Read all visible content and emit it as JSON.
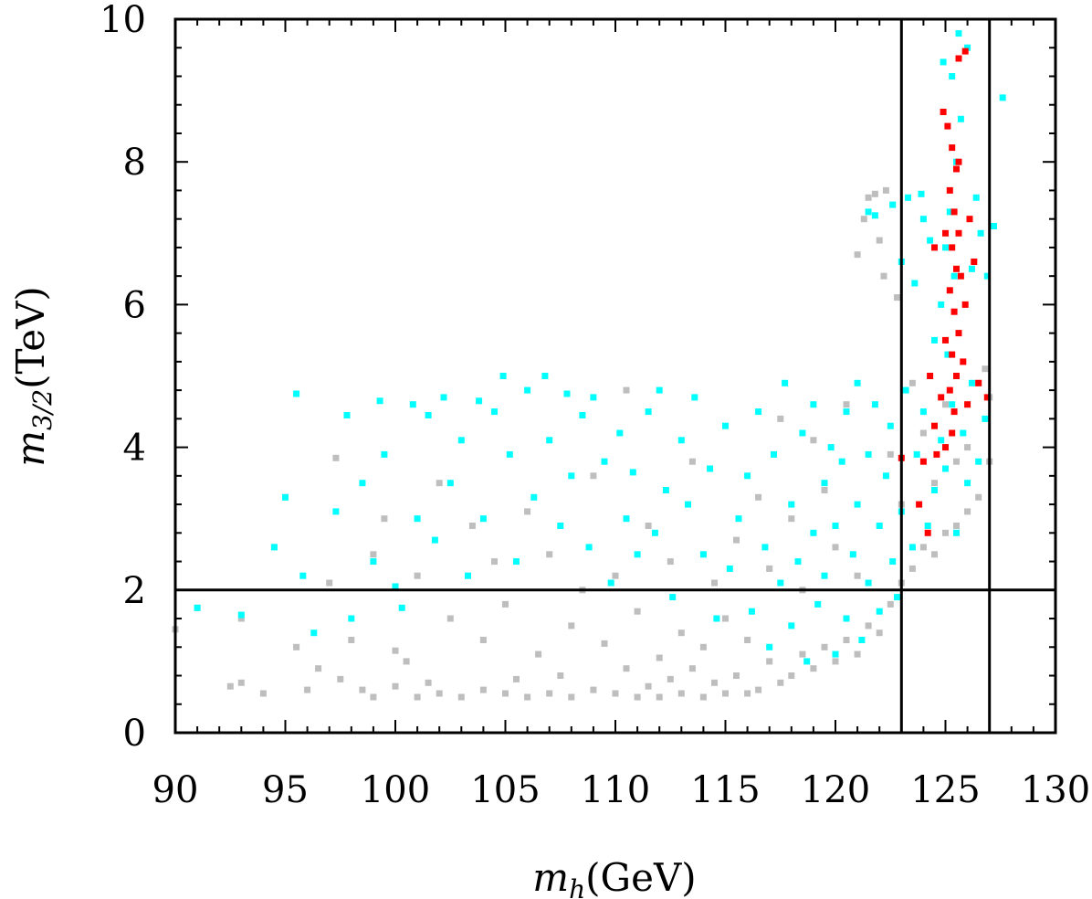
{
  "chart_data": {
    "type": "scatter",
    "xlabel": {
      "symbol": "m",
      "subscript": "h",
      "unit": "(GeV)"
    },
    "ylabel": {
      "symbol": "m",
      "subscript": "3/2",
      "unit": "(TeV)"
    },
    "xlim": [
      90,
      130
    ],
    "ylim": [
      0,
      10
    ],
    "x_ticks": [
      "90",
      "95",
      "100",
      "105",
      "110",
      "115",
      "120",
      "125",
      "130"
    ],
    "y_ticks": [
      "0",
      "2",
      "4",
      "6",
      "8",
      "10"
    ],
    "reference_lines": {
      "vertical": [
        123,
        127
      ],
      "horizontal": [
        2
      ]
    },
    "series": [
      {
        "color": "#bebebe",
        "points": [
          [
            90.0,
            1.45
          ],
          [
            91.0,
            1.75
          ],
          [
            92.5,
            0.65
          ],
          [
            93.0,
            0.7
          ],
          [
            93.0,
            1.6
          ],
          [
            94.0,
            0.55
          ],
          [
            94.5,
            2.6
          ],
          [
            95.0,
            3.3
          ],
          [
            95.5,
            1.2
          ],
          [
            96.0,
            0.6
          ],
          [
            96.5,
            0.9
          ],
          [
            97.0,
            2.1
          ],
          [
            97.3,
            3.85
          ],
          [
            97.5,
            0.75
          ],
          [
            98.0,
            1.3
          ],
          [
            98.5,
            0.6
          ],
          [
            99.0,
            2.5
          ],
          [
            99.0,
            0.5
          ],
          [
            99.5,
            3.0
          ],
          [
            100.0,
            0.65
          ],
          [
            100.0,
            1.15
          ],
          [
            100.5,
            1.0
          ],
          [
            101.0,
            2.2
          ],
          [
            101.0,
            0.5
          ],
          [
            101.5,
            0.7
          ],
          [
            102.0,
            0.55
          ],
          [
            102.0,
            3.5
          ],
          [
            102.5,
            1.6
          ],
          [
            103.0,
            0.5
          ],
          [
            103.5,
            2.9
          ],
          [
            104.0,
            0.6
          ],
          [
            104.0,
            1.3
          ],
          [
            104.5,
            2.4
          ],
          [
            105.0,
            0.55
          ],
          [
            105.0,
            1.8
          ],
          [
            105.5,
            0.75
          ],
          [
            106.0,
            0.5
          ],
          [
            106.0,
            3.1
          ],
          [
            106.5,
            1.1
          ],
          [
            107.0,
            0.55
          ],
          [
            107.0,
            2.5
          ],
          [
            107.5,
            0.8
          ],
          [
            108.0,
            0.5
          ],
          [
            108.0,
            1.5
          ],
          [
            108.5,
            2.0
          ],
          [
            109.0,
            0.6
          ],
          [
            109.0,
            3.6
          ],
          [
            109.5,
            1.25
          ],
          [
            110.0,
            0.55
          ],
          [
            110.0,
            2.2
          ],
          [
            110.5,
            4.8
          ],
          [
            110.5,
            0.9
          ],
          [
            111.0,
            0.5
          ],
          [
            111.0,
            1.7
          ],
          [
            111.5,
            0.65
          ],
          [
            111.5,
            2.9
          ],
          [
            112.0,
            0.5
          ],
          [
            112.0,
            1.05
          ],
          [
            112.5,
            0.75
          ],
          [
            112.5,
            2.4
          ],
          [
            113.0,
            0.55
          ],
          [
            113.0,
            1.4
          ],
          [
            113.5,
            0.9
          ],
          [
            113.5,
            3.8
          ],
          [
            114.0,
            0.5
          ],
          [
            114.0,
            1.2
          ],
          [
            114.5,
            0.7
          ],
          [
            114.5,
            2.1
          ],
          [
            115.0,
            0.55
          ],
          [
            115.0,
            1.6
          ],
          [
            115.5,
            0.8
          ],
          [
            115.5,
            2.7
          ],
          [
            116.0,
            0.55
          ],
          [
            116.0,
            1.3
          ],
          [
            116.5,
            0.6
          ],
          [
            116.5,
            3.3
          ],
          [
            117.0,
            1.0
          ],
          [
            117.0,
            2.3
          ],
          [
            117.5,
            0.7
          ],
          [
            117.5,
            4.4
          ],
          [
            118.0,
            0.8
          ],
          [
            118.0,
            3.0
          ],
          [
            118.5,
            1.1
          ],
          [
            118.5,
            2.0
          ],
          [
            119.0,
            0.9
          ],
          [
            119.0,
            4.1
          ],
          [
            119.5,
            1.2
          ],
          [
            119.5,
            3.4
          ],
          [
            120.0,
            1.0
          ],
          [
            120.0,
            2.6
          ],
          [
            120.5,
            1.3
          ],
          [
            120.5,
            4.6
          ],
          [
            121.0,
            1.1
          ],
          [
            121.0,
            2.2
          ],
          [
            121.5,
            1.5
          ],
          [
            121.5,
            7.5
          ],
          [
            121.8,
            7.55
          ],
          [
            122.0,
            1.4
          ],
          [
            122.0,
            6.9
          ],
          [
            122.2,
            6.4
          ],
          [
            122.5,
            1.8
          ],
          [
            122.5,
            3.9
          ],
          [
            122.8,
            6.1
          ],
          [
            123.0,
            2.1
          ],
          [
            123.0,
            3.2
          ],
          [
            123.5,
            2.3
          ],
          [
            123.5,
            4.9
          ],
          [
            124.0,
            2.6
          ],
          [
            124.0,
            4.2
          ],
          [
            124.5,
            2.5
          ],
          [
            124.5,
            3.5
          ],
          [
            125.0,
            2.8
          ],
          [
            125.0,
            4.6
          ],
          [
            125.5,
            2.9
          ],
          [
            125.5,
            3.8
          ],
          [
            126.0,
            3.1
          ],
          [
            126.0,
            4.0
          ],
          [
            126.5,
            3.3
          ],
          [
            126.5,
            4.9
          ],
          [
            127.0,
            3.8
          ],
          [
            127.0,
            4.7
          ],
          [
            126.8,
            5.1
          ],
          [
            121.0,
            6.7
          ],
          [
            121.3,
            7.2
          ],
          [
            122.3,
            7.6
          ]
        ]
      },
      {
        "color": "#00ffff",
        "points": [
          [
            91.0,
            1.75
          ],
          [
            93.0,
            1.65
          ],
          [
            94.5,
            2.6
          ],
          [
            95.0,
            3.3
          ],
          [
            95.5,
            4.75
          ],
          [
            95.8,
            2.2
          ],
          [
            96.3,
            1.4
          ],
          [
            97.3,
            3.1
          ],
          [
            97.8,
            4.45
          ],
          [
            98.0,
            1.6
          ],
          [
            98.5,
            3.5
          ],
          [
            99.0,
            2.4
          ],
          [
            99.3,
            4.65
          ],
          [
            99.5,
            3.9
          ],
          [
            100.0,
            2.05
          ],
          [
            100.3,
            1.75
          ],
          [
            100.8,
            4.6
          ],
          [
            101.0,
            3.0
          ],
          [
            101.5,
            4.45
          ],
          [
            101.8,
            2.7
          ],
          [
            102.2,
            4.7
          ],
          [
            102.5,
            3.5
          ],
          [
            103.0,
            4.1
          ],
          [
            103.3,
            2.2
          ],
          [
            103.8,
            4.65
          ],
          [
            104.0,
            3.0
          ],
          [
            104.5,
            4.5
          ],
          [
            104.9,
            5.0
          ],
          [
            105.2,
            3.9
          ],
          [
            105.5,
            2.4
          ],
          [
            106.0,
            4.8
          ],
          [
            106.3,
            3.3
          ],
          [
            106.8,
            5.0
          ],
          [
            107.0,
            4.1
          ],
          [
            107.5,
            2.9
          ],
          [
            107.8,
            4.75
          ],
          [
            108.0,
            3.6
          ],
          [
            108.5,
            4.45
          ],
          [
            108.8,
            2.6
          ],
          [
            109.0,
            4.7
          ],
          [
            109.5,
            3.8
          ],
          [
            109.8,
            2.1
          ],
          [
            110.2,
            4.2
          ],
          [
            110.5,
            3.0
          ],
          [
            110.8,
            3.65
          ],
          [
            111.0,
            2.5
          ],
          [
            111.5,
            4.5
          ],
          [
            111.8,
            2.8
          ],
          [
            112.0,
            4.8
          ],
          [
            112.3,
            3.4
          ],
          [
            112.6,
            1.9
          ],
          [
            113.0,
            4.1
          ],
          [
            113.3,
            3.2
          ],
          [
            113.6,
            4.7
          ],
          [
            114.0,
            2.5
          ],
          [
            114.3,
            3.7
          ],
          [
            114.6,
            1.6
          ],
          [
            115.0,
            4.3
          ],
          [
            115.2,
            2.3
          ],
          [
            115.6,
            3.0
          ],
          [
            116.0,
            3.6
          ],
          [
            116.2,
            1.7
          ],
          [
            116.5,
            4.5
          ],
          [
            116.8,
            2.6
          ],
          [
            117.0,
            1.2
          ],
          [
            117.2,
            3.9
          ],
          [
            117.5,
            2.1
          ],
          [
            117.7,
            4.9
          ],
          [
            118.0,
            1.5
          ],
          [
            118.0,
            3.2
          ],
          [
            118.3,
            2.4
          ],
          [
            118.5,
            4.2
          ],
          [
            118.7,
            1.0
          ],
          [
            119.0,
            2.8
          ],
          [
            119.0,
            4.6
          ],
          [
            119.2,
            1.8
          ],
          [
            119.5,
            3.5
          ],
          [
            119.5,
            2.2
          ],
          [
            119.8,
            4.0
          ],
          [
            120.0,
            1.1
          ],
          [
            120.0,
            2.9
          ],
          [
            120.3,
            3.8
          ],
          [
            120.5,
            1.6
          ],
          [
            120.5,
            4.5
          ],
          [
            120.8,
            2.5
          ],
          [
            121.0,
            3.2
          ],
          [
            121.0,
            4.9
          ],
          [
            121.2,
            1.3
          ],
          [
            121.5,
            2.1
          ],
          [
            121.5,
            3.9
          ],
          [
            121.8,
            4.6
          ],
          [
            122.0,
            1.7
          ],
          [
            122.0,
            2.9
          ],
          [
            122.3,
            3.6
          ],
          [
            122.5,
            4.3
          ],
          [
            122.6,
            2.4
          ],
          [
            122.8,
            1.9
          ],
          [
            123.0,
            3.1
          ],
          [
            123.2,
            4.8
          ],
          [
            123.5,
            2.6
          ],
          [
            123.7,
            3.9
          ],
          [
            124.0,
            4.5
          ],
          [
            124.2,
            2.9
          ],
          [
            124.5,
            3.4
          ],
          [
            124.8,
            4.1
          ],
          [
            125.0,
            3.7
          ],
          [
            125.3,
            4.6
          ],
          [
            125.5,
            2.8
          ],
          [
            125.8,
            4.2
          ],
          [
            126.0,
            3.5
          ],
          [
            126.2,
            4.9
          ],
          [
            126.5,
            3.8
          ],
          [
            126.8,
            4.4
          ],
          [
            124.5,
            5.5
          ],
          [
            124.8,
            6.0
          ],
          [
            125.0,
            6.8
          ],
          [
            125.2,
            7.3
          ],
          [
            125.5,
            8.0
          ],
          [
            125.7,
            8.6
          ],
          [
            125.3,
            9.2
          ],
          [
            125.6,
            9.8
          ],
          [
            124.9,
            9.4
          ],
          [
            126.0,
            9.6
          ],
          [
            125.1,
            5.3
          ],
          [
            125.4,
            6.4
          ],
          [
            123.0,
            6.6
          ],
          [
            123.3,
            7.5
          ],
          [
            123.6,
            6.3
          ],
          [
            124.0,
            7.2
          ],
          [
            124.3,
            6.9
          ],
          [
            126.2,
            6.5
          ],
          [
            126.6,
            7.0
          ],
          [
            126.9,
            6.4
          ],
          [
            127.2,
            7.1
          ],
          [
            127.6,
            8.9
          ],
          [
            121.5,
            7.3
          ],
          [
            121.8,
            7.25
          ],
          [
            122.6,
            7.4
          ],
          [
            123.9,
            7.55
          ],
          [
            126.4,
            7.5
          ]
        ]
      },
      {
        "color": "#ff0000",
        "points": [
          [
            125.3,
            4.2
          ],
          [
            125.4,
            4.5
          ],
          [
            125.2,
            4.8
          ],
          [
            125.5,
            5.0
          ],
          [
            125.3,
            5.3
          ],
          [
            125.6,
            5.6
          ],
          [
            125.4,
            5.9
          ],
          [
            125.2,
            6.2
          ],
          [
            125.5,
            6.5
          ],
          [
            125.3,
            6.8
          ],
          [
            125.6,
            7.0
          ],
          [
            125.4,
            7.3
          ],
          [
            125.2,
            7.6
          ],
          [
            125.5,
            7.9
          ],
          [
            125.3,
            8.2
          ],
          [
            125.1,
            8.5
          ],
          [
            124.9,
            8.7
          ],
          [
            125.6,
            8.0
          ],
          [
            125.7,
            6.4
          ],
          [
            125.0,
            5.5
          ],
          [
            124.5,
            4.3
          ],
          [
            124.8,
            4.7
          ],
          [
            126.0,
            4.6
          ],
          [
            126.3,
            6.6
          ],
          [
            126.1,
            7.2
          ],
          [
            124.5,
            6.8
          ],
          [
            124.3,
            5.0
          ],
          [
            125.9,
            9.55
          ],
          [
            125.6,
            9.45
          ],
          [
            126.9,
            4.7
          ],
          [
            126.5,
            4.9
          ],
          [
            124.0,
            3.8
          ],
          [
            123.8,
            3.2
          ],
          [
            124.2,
            2.8
          ],
          [
            123.0,
            3.85
          ],
          [
            124.6,
            3.9
          ],
          [
            125.0,
            4.0
          ],
          [
            125.8,
            5.2
          ],
          [
            125.9,
            6.0
          ],
          [
            125.0,
            7.0
          ]
        ]
      }
    ]
  }
}
